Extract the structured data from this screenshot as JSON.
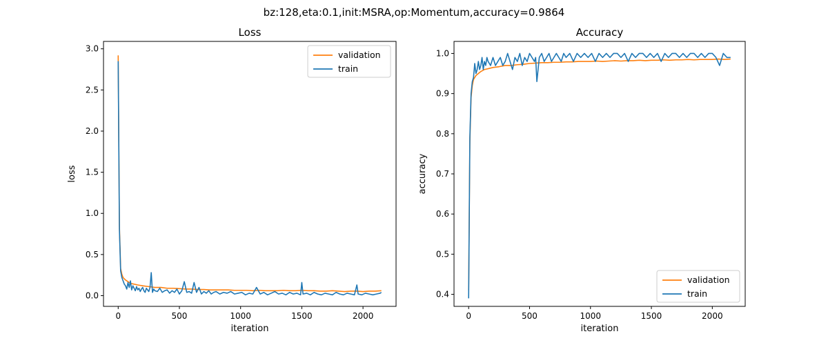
{
  "figure": {
    "suptitle": "bz:128,eta:0.1,init:MSRA,op:Momentum,accuracy=0.9864"
  },
  "colors": {
    "validation": "#ff7f0e",
    "train": "#1f77b4"
  },
  "chart_data": [
    {
      "type": "line",
      "title": "Loss",
      "xlabel": "iteration",
      "ylabel": "loss",
      "xlim": [
        -120,
        2270
      ],
      "ylim": [
        -0.13,
        3.09
      ],
      "xticks": [
        0,
        500,
        1000,
        1500,
        2000
      ],
      "yticks": [
        0.0,
        0.5,
        1.0,
        1.5,
        2.0,
        2.5,
        3.0
      ],
      "ytick_labels": [
        "0.0",
        "0.5",
        "1.0",
        "1.5",
        "2.0",
        "2.5",
        "3.0"
      ],
      "grid": false,
      "legend": "upper right",
      "series": [
        {
          "name": "validation",
          "color": "#ff7f0e",
          "x": [
            0,
            10,
            20,
            30,
            40,
            60,
            80,
            100,
            130,
            160,
            200,
            250,
            300,
            350,
            400,
            450,
            500,
            550,
            600,
            650,
            700,
            750,
            800,
            850,
            900,
            950,
            1000,
            1050,
            1100,
            1150,
            1200,
            1250,
            1300,
            1350,
            1400,
            1450,
            1500,
            1550,
            1600,
            1650,
            1700,
            1750,
            1800,
            1850,
            1900,
            1950,
            2000,
            2050,
            2100,
            2150
          ],
          "y": [
            2.92,
            0.85,
            0.33,
            0.26,
            0.22,
            0.19,
            0.17,
            0.15,
            0.14,
            0.13,
            0.12,
            0.11,
            0.1,
            0.1,
            0.09,
            0.09,
            0.085,
            0.08,
            0.08,
            0.075,
            0.075,
            0.07,
            0.07,
            0.07,
            0.07,
            0.065,
            0.065,
            0.065,
            0.06,
            0.065,
            0.06,
            0.06,
            0.06,
            0.065,
            0.06,
            0.06,
            0.065,
            0.06,
            0.06,
            0.055,
            0.055,
            0.06,
            0.055,
            0.05,
            0.055,
            0.055,
            0.05,
            0.055,
            0.055,
            0.06
          ]
        },
        {
          "name": "train",
          "color": "#1f77b4",
          "x": [
            0,
            10,
            20,
            30,
            40,
            50,
            60,
            70,
            80,
            90,
            100,
            110,
            120,
            130,
            140,
            150,
            160,
            170,
            180,
            190,
            200,
            210,
            220,
            230,
            240,
            250,
            260,
            270,
            280,
            290,
            300,
            320,
            340,
            360,
            380,
            400,
            420,
            440,
            460,
            480,
            500,
            520,
            540,
            560,
            580,
            600,
            620,
            640,
            660,
            680,
            700,
            720,
            740,
            760,
            780,
            800,
            830,
            860,
            890,
            920,
            950,
            980,
            1010,
            1040,
            1070,
            1100,
            1130,
            1160,
            1190,
            1220,
            1250,
            1280,
            1310,
            1340,
            1370,
            1400,
            1430,
            1460,
            1490,
            1500,
            1510,
            1540,
            1570,
            1600,
            1630,
            1660,
            1690,
            1720,
            1750,
            1780,
            1810,
            1840,
            1870,
            1900,
            1930,
            1950,
            1960,
            1990,
            2020,
            2050,
            2080,
            2110,
            2140,
            2150
          ],
          "y": [
            2.85,
            0.8,
            0.3,
            0.22,
            0.18,
            0.14,
            0.12,
            0.08,
            0.16,
            0.1,
            0.18,
            0.07,
            0.12,
            0.09,
            0.06,
            0.11,
            0.07,
            0.09,
            0.05,
            0.08,
            0.1,
            0.06,
            0.04,
            0.09,
            0.07,
            0.05,
            0.1,
            0.28,
            0.04,
            0.08,
            0.06,
            0.05,
            0.09,
            0.04,
            0.06,
            0.07,
            0.03,
            0.06,
            0.04,
            0.08,
            0.02,
            0.06,
            0.17,
            0.04,
            0.05,
            0.03,
            0.16,
            0.04,
            0.1,
            0.02,
            0.05,
            0.03,
            0.06,
            0.02,
            0.04,
            0.05,
            0.02,
            0.04,
            0.03,
            0.05,
            0.02,
            0.03,
            0.04,
            0.01,
            0.03,
            0.02,
            0.1,
            0.02,
            0.04,
            0.01,
            0.03,
            0.05,
            0.02,
            0.03,
            0.01,
            0.04,
            0.02,
            0.03,
            0.01,
            0.16,
            0.02,
            0.03,
            0.01,
            0.04,
            0.02,
            0.01,
            0.03,
            0.02,
            0.01,
            0.04,
            0.02,
            0.01,
            0.03,
            0.02,
            0.01,
            0.13,
            0.02,
            0.01,
            0.03,
            0.02,
            0.01,
            0.02,
            0.03,
            0.04
          ]
        }
      ]
    },
    {
      "type": "line",
      "title": "Accuracy",
      "xlabel": "iteration",
      "ylabel": "accuracy",
      "xlim": [
        -120,
        2270
      ],
      "ylim": [
        0.37,
        1.03
      ],
      "xticks": [
        0,
        500,
        1000,
        1500,
        2000
      ],
      "yticks": [
        0.4,
        0.5,
        0.6,
        0.7,
        0.8,
        0.9,
        1.0
      ],
      "ytick_labels": [
        "0.4",
        "0.5",
        "0.6",
        "0.7",
        "0.8",
        "0.9",
        "1.0"
      ],
      "grid": false,
      "legend": "lower right",
      "series": [
        {
          "name": "validation",
          "color": "#ff7f0e",
          "x": [
            0,
            10,
            20,
            30,
            40,
            60,
            80,
            100,
            130,
            160,
            200,
            250,
            300,
            350,
            400,
            450,
            500,
            550,
            600,
            650,
            700,
            750,
            800,
            850,
            900,
            950,
            1000,
            1050,
            1100,
            1150,
            1200,
            1250,
            1300,
            1350,
            1400,
            1450,
            1500,
            1550,
            1600,
            1650,
            1700,
            1750,
            1800,
            1850,
            1900,
            1950,
            2000,
            2050,
            2100,
            2150
          ],
          "y": [
            0.41,
            0.78,
            0.89,
            0.92,
            0.935,
            0.945,
            0.95,
            0.955,
            0.96,
            0.962,
            0.965,
            0.967,
            0.97,
            0.97,
            0.972,
            0.973,
            0.975,
            0.976,
            0.977,
            0.977,
            0.978,
            0.978,
            0.979,
            0.979,
            0.98,
            0.98,
            0.98,
            0.981,
            0.98,
            0.981,
            0.982,
            0.981,
            0.982,
            0.982,
            0.983,
            0.982,
            0.983,
            0.983,
            0.984,
            0.983,
            0.984,
            0.984,
            0.985,
            0.984,
            0.985,
            0.985,
            0.985,
            0.986,
            0.985,
            0.986
          ]
        },
        {
          "name": "train",
          "color": "#1f77b4",
          "x": [
            0,
            10,
            20,
            30,
            40,
            50,
            60,
            70,
            80,
            90,
            100,
            110,
            120,
            130,
            140,
            150,
            160,
            180,
            200,
            220,
            240,
            260,
            280,
            300,
            320,
            340,
            360,
            380,
            400,
            420,
            440,
            460,
            480,
            500,
            520,
            540,
            550,
            560,
            580,
            600,
            620,
            640,
            660,
            680,
            700,
            720,
            740,
            760,
            780,
            800,
            830,
            860,
            890,
            920,
            950,
            980,
            1010,
            1040,
            1070,
            1100,
            1130,
            1160,
            1190,
            1220,
            1250,
            1280,
            1310,
            1340,
            1370,
            1400,
            1430,
            1460,
            1490,
            1520,
            1550,
            1580,
            1610,
            1640,
            1670,
            1700,
            1730,
            1760,
            1790,
            1820,
            1850,
            1880,
            1910,
            1940,
            1970,
            2000,
            2030,
            2060,
            2090,
            2120,
            2150
          ],
          "y": [
            0.39,
            0.79,
            0.9,
            0.93,
            0.94,
            0.975,
            0.95,
            0.96,
            0.98,
            0.96,
            0.97,
            0.99,
            0.96,
            0.98,
            0.97,
            0.99,
            0.98,
            0.97,
            0.99,
            0.97,
            0.98,
            0.99,
            0.97,
            0.98,
            1.0,
            0.98,
            0.96,
            0.99,
            0.98,
            1.0,
            0.97,
            0.99,
            0.98,
            1.0,
            0.99,
            0.98,
            0.99,
            0.93,
            0.99,
            1.0,
            0.98,
            0.99,
            1.0,
            0.98,
            0.99,
            1.0,
            0.99,
            0.98,
            1.0,
            0.99,
            1.0,
            0.98,
            1.0,
            0.99,
            1.0,
            0.99,
            1.0,
            0.98,
            1.0,
            0.99,
            1.0,
            0.99,
            1.0,
            1.0,
            0.99,
            1.0,
            0.98,
            1.0,
            0.99,
            1.0,
            1.0,
            0.99,
            1.0,
            0.99,
            1.0,
            0.98,
            1.0,
            0.99,
            1.0,
            1.0,
            0.99,
            1.0,
            0.99,
            1.0,
            1.0,
            0.99,
            1.0,
            0.99,
            1.0,
            1.0,
            0.99,
            0.97,
            1.0,
            0.99,
            0.99
          ]
        }
      ]
    }
  ]
}
